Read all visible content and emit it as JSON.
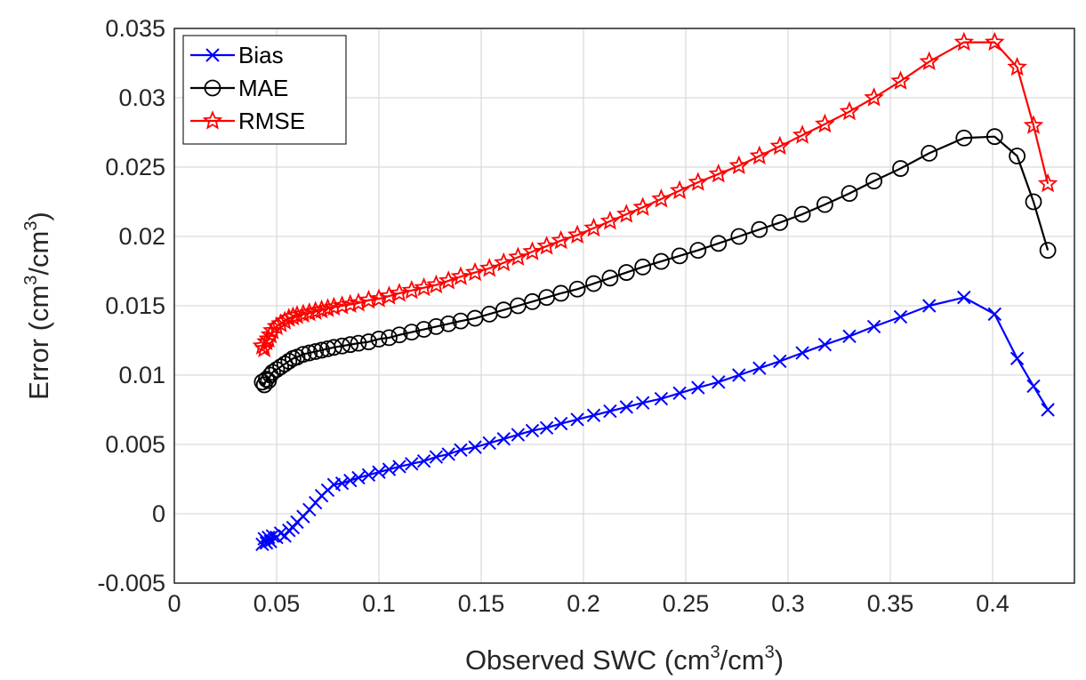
{
  "chart_data": {
    "type": "line",
    "xlabel": {
      "base": "Observed SWC (cm",
      "sup": "3",
      "mid": "/cm",
      "sup2": "3",
      "end": ")"
    },
    "ylabel": {
      "base": "Error (cm",
      "sup": "3",
      "mid": "/cm",
      "sup2": "3",
      "end": ")"
    },
    "xlim": [
      0,
      0.44
    ],
    "ylim": [
      -0.005,
      0.035
    ],
    "xticks": [
      0,
      0.05,
      0.1,
      0.15,
      0.2,
      0.25,
      0.3,
      0.35,
      0.4
    ],
    "xtick_labels": [
      "0",
      "0.05",
      "0.1",
      "0.15",
      "0.2",
      "0.25",
      "0.3",
      "0.35",
      "0.4"
    ],
    "yticks": [
      -0.005,
      0,
      0.005,
      0.01,
      0.015,
      0.02,
      0.025,
      0.03,
      0.035
    ],
    "ytick_labels": [
      "-0.005",
      "0",
      "0.005",
      "0.01",
      "0.015",
      "0.02",
      "0.025",
      "0.03",
      "0.035"
    ],
    "grid": true,
    "legend_position": "top-left",
    "x": [
      0.043,
      0.044,
      0.045,
      0.046,
      0.047,
      0.048,
      0.05,
      0.052,
      0.054,
      0.056,
      0.058,
      0.06,
      0.063,
      0.066,
      0.069,
      0.072,
      0.075,
      0.078,
      0.082,
      0.086,
      0.09,
      0.095,
      0.1,
      0.105,
      0.11,
      0.116,
      0.122,
      0.128,
      0.134,
      0.14,
      0.147,
      0.154,
      0.161,
      0.168,
      0.175,
      0.182,
      0.189,
      0.197,
      0.205,
      0.213,
      0.221,
      0.229,
      0.238,
      0.247,
      0.256,
      0.266,
      0.276,
      0.286,
      0.296,
      0.307,
      0.318,
      0.33,
      0.342,
      0.355,
      0.369,
      0.386,
      0.401,
      0.412,
      0.42,
      0.427
    ],
    "series": [
      {
        "name": "Bias",
        "color": "#0000ff",
        "marker": "x",
        "values": [
          -0.0022,
          -0.0018,
          -0.0021,
          -0.0017,
          -0.002,
          -0.0016,
          -0.0017,
          -0.0014,
          -0.0016,
          -0.0012,
          -0.001,
          -0.0006,
          -0.0002,
          0.0003,
          0.0008,
          0.0013,
          0.0017,
          0.0021,
          0.0022,
          0.0024,
          0.0026,
          0.0028,
          0.003,
          0.0032,
          0.0034,
          0.0036,
          0.0038,
          0.0041,
          0.0043,
          0.0046,
          0.0048,
          0.0051,
          0.0054,
          0.0057,
          0.006,
          0.0062,
          0.0065,
          0.0068,
          0.0071,
          0.0074,
          0.0077,
          0.008,
          0.0083,
          0.0087,
          0.0091,
          0.0095,
          0.01,
          0.0105,
          0.011,
          0.0116,
          0.0122,
          0.0128,
          0.0135,
          0.0142,
          0.015,
          0.0156,
          0.0144,
          0.0112,
          0.0092,
          0.0075
        ]
      },
      {
        "name": "MAE",
        "color": "#000000",
        "marker": "o",
        "values": [
          0.0095,
          0.0093,
          0.0097,
          0.0096,
          0.01,
          0.0102,
          0.0104,
          0.0106,
          0.0108,
          0.011,
          0.0112,
          0.0113,
          0.0115,
          0.0116,
          0.0117,
          0.0118,
          0.0119,
          0.012,
          0.0121,
          0.0122,
          0.0123,
          0.0124,
          0.0126,
          0.0127,
          0.0129,
          0.0131,
          0.0133,
          0.0135,
          0.0137,
          0.0139,
          0.0141,
          0.0144,
          0.0147,
          0.015,
          0.0153,
          0.0156,
          0.0159,
          0.0162,
          0.0166,
          0.017,
          0.0174,
          0.0178,
          0.0182,
          0.0186,
          0.019,
          0.0195,
          0.02,
          0.0205,
          0.021,
          0.0216,
          0.0223,
          0.0231,
          0.024,
          0.0249,
          0.026,
          0.0271,
          0.0272,
          0.0258,
          0.0225,
          0.019
        ]
      },
      {
        "name": "RMSE",
        "color": "#ff0000",
        "marker": "star",
        "values": [
          0.0121,
          0.0119,
          0.0124,
          0.0126,
          0.0129,
          0.0132,
          0.0135,
          0.0137,
          0.0139,
          0.0141,
          0.0142,
          0.0143,
          0.0144,
          0.0145,
          0.0146,
          0.0147,
          0.0148,
          0.0149,
          0.015,
          0.0151,
          0.0152,
          0.0154,
          0.0155,
          0.0157,
          0.0159,
          0.0161,
          0.0163,
          0.0165,
          0.0168,
          0.0171,
          0.0174,
          0.0177,
          0.0181,
          0.0185,
          0.0189,
          0.0193,
          0.0197,
          0.0201,
          0.0206,
          0.0211,
          0.0216,
          0.0221,
          0.0227,
          0.0233,
          0.0239,
          0.0245,
          0.0251,
          0.0258,
          0.0265,
          0.0273,
          0.0281,
          0.029,
          0.03,
          0.0312,
          0.0326,
          0.034,
          0.034,
          0.0322,
          0.028,
          0.0238
        ]
      }
    ]
  }
}
